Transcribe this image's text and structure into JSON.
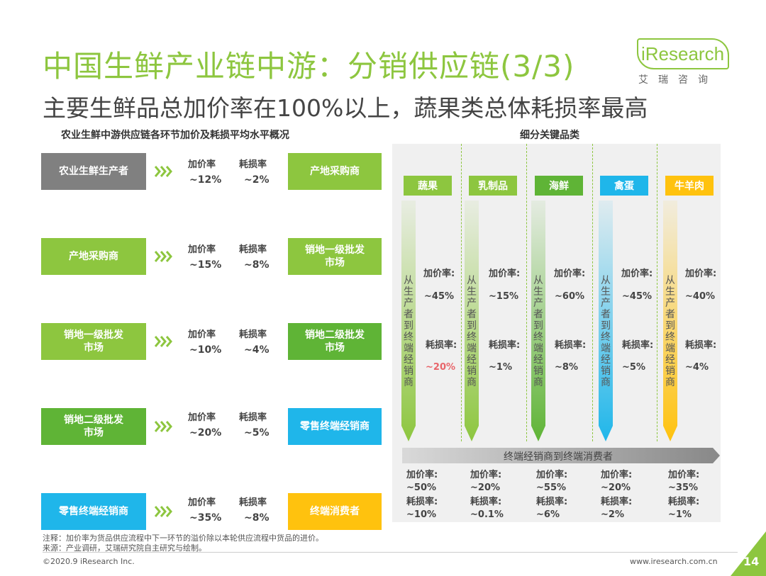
{
  "header": {
    "title": "中国生鲜产业链中游：分销供应链(3/3)",
    "subtitle": "主要生鲜品总加价率在100%以上，蔬果类总体耗损率最高"
  },
  "logo": {
    "text": "iResearch",
    "sub": "艾瑞咨询"
  },
  "left_section": {
    "title": "农业生鲜中游供应链各环节加价及耗损平均水平概况",
    "markup_label": "加价率",
    "loss_label": "耗损率",
    "rows": [
      {
        "from": "农业生鲜生产者",
        "markup": "~12%",
        "loss": "~2%",
        "to": "产地采购商"
      },
      {
        "from": "产地采购商",
        "markup": "~15%",
        "loss": "~8%",
        "to": "销地一级批发\n市场"
      },
      {
        "from": "销地一级批发\n市场",
        "markup": "~10%",
        "loss": "~4%",
        "to": "销地二级批发\n市场"
      },
      {
        "from": "销地二级批发\n市场",
        "markup": "~20%",
        "loss": "~5%",
        "to": "零售终端经销商"
      },
      {
        "from": "零售终端经销商",
        "markup": "~35%",
        "loss": "~8%",
        "to": "终端消费者"
      }
    ]
  },
  "right_section": {
    "title": "细分关键品类",
    "flow_text": "从生产者到终端经销商",
    "band_text": "终端经销商到终端消费者",
    "markup_label": "加价率:",
    "loss_label": "耗损率:",
    "categories": [
      {
        "name": "蔬果",
        "color": "#8dc63f",
        "upstream_markup": "~45%",
        "upstream_loss": "~20%",
        "retail_markup": "~50%",
        "retail_loss": "~10%"
      },
      {
        "name": "乳制品",
        "color": "#8dc63f",
        "upstream_markup": "~15%",
        "upstream_loss": "~1%",
        "retail_markup": "~20%",
        "retail_loss": "~0.1%"
      },
      {
        "name": "海鲜",
        "color": "#5fb436",
        "upstream_markup": "~60%",
        "upstream_loss": "~8%",
        "retail_markup": "~55%",
        "retail_loss": "~6%"
      },
      {
        "name": "禽蛋",
        "color": "#1fb6ea",
        "upstream_markup": "~45%",
        "upstream_loss": "~5%",
        "retail_markup": "~20%",
        "retail_loss": "~2%"
      },
      {
        "name": "牛羊肉",
        "color": "#ffc20e",
        "upstream_markup": "~40%",
        "upstream_loss": "~4%",
        "retail_markup": "~35%",
        "retail_loss": "~1%"
      }
    ]
  },
  "notes": {
    "note": "注释：加价率为货品供应流程中下一环节的溢价除以本轮供应流程中货品的进价。",
    "source": "来源：产业调研，艾瑞研究院自主研究与绘制。"
  },
  "footer": {
    "copyright": "©2020.9 iResearch Inc.",
    "website": "www.iresearch.com.cn",
    "page": "14"
  }
}
